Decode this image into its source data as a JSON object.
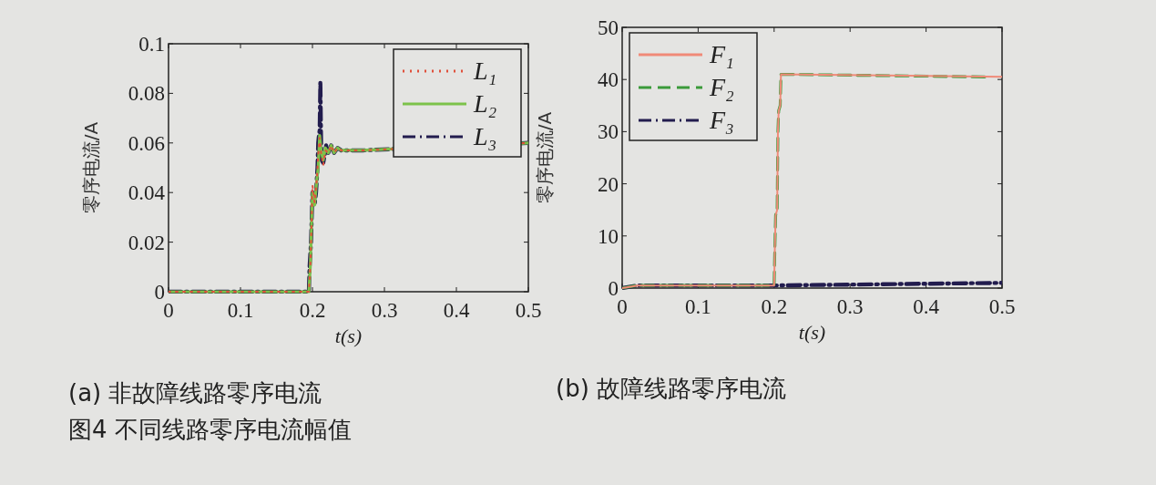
{
  "chart_data": [
    {
      "type": "line",
      "title": "(a) 非故障线路零序电流",
      "xlabel": "t(s)",
      "ylabel": "零序电流/A",
      "xlim": [
        0,
        0.5
      ],
      "ylim": [
        0,
        0.1
      ],
      "xticks": [
        0,
        0.1,
        0.2,
        0.3,
        0.4,
        0.5
      ],
      "yticks": [
        0,
        0.02,
        0.04,
        0.06,
        0.08,
        0.1
      ],
      "legend": "top right",
      "annotations": [
        "图4 不同线路零序电流幅值"
      ],
      "series": [
        {
          "name": "L₁",
          "color": "#e0503c",
          "line_style": "dotted",
          "x": [
            0,
            0.195,
            0.197,
            0.199,
            0.2,
            0.203,
            0.206,
            0.208,
            0.21,
            0.212,
            0.215,
            0.218,
            0.222,
            0.226,
            0.23,
            0.235,
            0.24,
            0.27,
            0.5
          ],
          "values": [
            0,
            0,
            0.01,
            0.03,
            0.043,
            0.036,
            0.045,
            0.055,
            0.062,
            0.056,
            0.051,
            0.057,
            0.056,
            0.059,
            0.056,
            0.058,
            0.057,
            0.057,
            0.06
          ]
        },
        {
          "name": "L₂",
          "color": "#7cc24a",
          "line_style": "solid",
          "x": [
            0,
            0.195,
            0.197,
            0.199,
            0.2,
            0.203,
            0.206,
            0.208,
            0.21,
            0.212,
            0.215,
            0.218,
            0.222,
            0.226,
            0.23,
            0.235,
            0.24,
            0.27,
            0.5
          ],
          "values": [
            0,
            0,
            0.01,
            0.03,
            0.04,
            0.035,
            0.045,
            0.05,
            0.063,
            0.057,
            0.053,
            0.058,
            0.056,
            0.059,
            0.056,
            0.058,
            0.057,
            0.057,
            0.06
          ]
        },
        {
          "name": "L₃",
          "color": "#221c4e",
          "line_style": "dashdot",
          "x": [
            0,
            0.195,
            0.196,
            0.198,
            0.2,
            0.201,
            0.203,
            0.205,
            0.207,
            0.208,
            0.209,
            0.21,
            0.211,
            0.212,
            0.213,
            0.215,
            0.217,
            0.219,
            0.222,
            0.226,
            0.23,
            0.235,
            0.24,
            0.27,
            0.5
          ],
          "values": [
            0,
            0,
            0.01,
            0.02,
            0.04,
            0.037,
            0.035,
            0.04,
            0.05,
            0.06,
            0.063,
            0.065,
            0.085,
            0.06,
            0.053,
            0.052,
            0.055,
            0.059,
            0.056,
            0.059,
            0.056,
            0.058,
            0.057,
            0.057,
            0.06
          ]
        }
      ]
    },
    {
      "type": "line",
      "title": "(b) 故障线路零序电流",
      "xlabel": "t(s)",
      "ylabel": "零序电流/A",
      "xlim": [
        0,
        0.5
      ],
      "ylim": [
        0,
        50
      ],
      "xticks": [
        0,
        0.1,
        0.2,
        0.3,
        0.4,
        0.5
      ],
      "yticks": [
        0,
        10,
        20,
        30,
        40,
        50
      ],
      "legend": "top left",
      "series": [
        {
          "name": "F₁",
          "color": "#f08a78",
          "line_style": "solid",
          "x": [
            0,
            0.02,
            0.2,
            0.201,
            0.202,
            0.204,
            0.205,
            0.206,
            0.208,
            0.209,
            0.5
          ],
          "values": [
            0,
            0.5,
            0.5,
            8,
            14,
            15,
            30,
            34,
            35,
            41,
            40.5
          ]
        },
        {
          "name": "F₂",
          "color": "#3a9a3a",
          "line_style": "dashed",
          "x": [
            0,
            0.02,
            0.2,
            0.201,
            0.202,
            0.204,
            0.205,
            0.206,
            0.208,
            0.209,
            0.48
          ],
          "values": [
            0,
            0.5,
            0.5,
            8,
            14,
            15,
            30,
            34,
            35,
            41,
            40.5
          ]
        },
        {
          "name": "F₃",
          "color": "#221c4e",
          "line_style": "dashdot",
          "x": [
            0,
            0.02,
            0.2,
            0.5
          ],
          "values": [
            0,
            0.5,
            0.5,
            1
          ]
        }
      ]
    }
  ]
}
